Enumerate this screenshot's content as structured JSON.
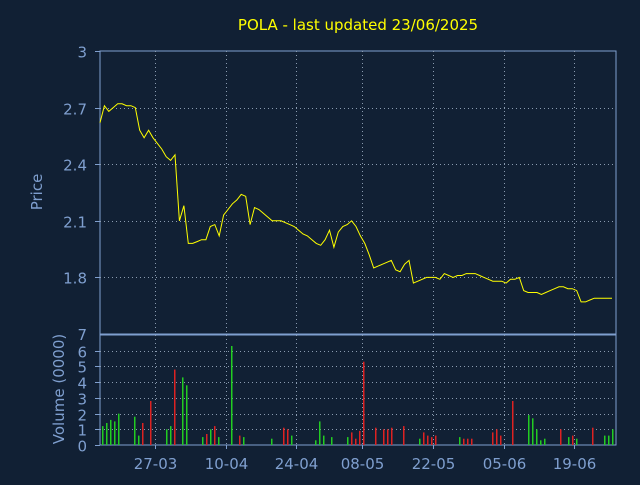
{
  "chart_data": [
    {
      "type": "line",
      "title": "POLA - last updated 23/06/2025",
      "ylabel": "Price",
      "ylim": [
        1.5,
        3.0
      ],
      "yticks": [
        "1.8",
        "2.1",
        "2.4",
        "2.7",
        "3"
      ],
      "ytick_values": [
        1.8,
        2.1,
        2.4,
        2.7,
        3.0
      ],
      "bottom_tick_label": "7",
      "grid": true,
      "line_color": "#ffff00",
      "series": [
        {
          "values": [
            2.62,
            2.71,
            2.68,
            2.7,
            2.72,
            2.72,
            2.71,
            2.71,
            2.7,
            2.58,
            2.54,
            2.58,
            2.54,
            2.51,
            2.48,
            2.44,
            2.42,
            2.45,
            2.1,
            2.18,
            1.98,
            1.98,
            1.99,
            2.0,
            2.0,
            2.07,
            2.08,
            2.02,
            2.13,
            2.16,
            2.19,
            2.21,
            2.24,
            2.23,
            2.08,
            2.17,
            2.16,
            2.14,
            2.12,
            2.1,
            2.1,
            2.1,
            2.09,
            2.08,
            2.07,
            2.05,
            2.03,
            2.02,
            2.0,
            1.98,
            1.97,
            2.0,
            2.05,
            1.96,
            2.04,
            2.07,
            2.08,
            2.1,
            2.07,
            2.02,
            1.98,
            1.92,
            1.85,
            1.86,
            1.87,
            1.88,
            1.89,
            1.84,
            1.83,
            1.87,
            1.89,
            1.77,
            1.78,
            1.79,
            1.8,
            1.8,
            1.8,
            1.79,
            1.82,
            1.81,
            1.8,
            1.81,
            1.81,
            1.82,
            1.82,
            1.82,
            1.81,
            1.8,
            1.79,
            1.78,
            1.78,
            1.78,
            1.77,
            1.79,
            1.79,
            1.8,
            1.73,
            1.72,
            1.72,
            1.72,
            1.71,
            1.72,
            1.73,
            1.74,
            1.75,
            1.75,
            1.74,
            1.74,
            1.73,
            1.67,
            1.67,
            1.68,
            1.69,
            1.69,
            1.69,
            1.69,
            1.69
          ]
        }
      ]
    },
    {
      "type": "bar",
      "ylabel": "Volume (0000)",
      "ylim": [
        0,
        7
      ],
      "yticks": [
        "0",
        "1",
        "2",
        "3",
        "4",
        "5",
        "6"
      ],
      "ytick_values": [
        0,
        1,
        2,
        3,
        4,
        5,
        6
      ],
      "xtick_labels": [
        "27-03",
        "10-04",
        "24-04",
        "08-05",
        "22-05",
        "05-06",
        "19-06"
      ],
      "xtick_index": [
        12,
        28,
        44,
        59,
        75,
        91,
        107
      ],
      "grid": true,
      "up_color": "#22cc22",
      "down_color": "#dd2222",
      "series": [
        {
          "values": [
            1.2,
            1.4,
            1.6,
            1.5,
            2.0,
            0,
            0,
            0,
            1.8,
            0.6,
            1.4,
            0,
            2.8,
            0,
            0,
            0,
            1.0,
            1.2,
            4.8,
            0,
            4.3,
            3.8,
            0,
            0,
            0,
            0.5,
            0.7,
            1.0,
            1.2,
            0.5,
            0,
            0,
            6.3,
            0,
            0.6,
            0.5,
            0,
            0,
            0,
            0,
            0,
            0,
            0.4,
            0,
            0,
            1.1,
            1.0,
            0.6,
            0,
            0,
            0,
            0,
            0,
            0.3,
            1.5,
            0.6,
            0,
            0.5,
            0,
            0,
            0,
            0.5,
            0.8,
            0.4,
            0.9,
            5.3,
            0,
            0,
            1.1,
            0,
            1.0,
            1.0,
            1.1,
            0,
            0,
            1.2,
            0,
            0,
            0,
            0.4,
            0.8,
            0.6,
            0.5,
            0.6,
            0,
            0,
            0,
            0,
            0,
            0.5,
            0.4,
            0.4,
            0.4,
            0,
            0,
            0,
            0,
            0.8,
            1.0,
            0.6,
            0,
            0,
            2.8,
            0,
            0,
            0,
            1.9,
            1.7,
            1.0,
            0.3,
            0.4,
            0,
            0,
            0,
            1.0,
            0,
            0.5,
            0.6,
            0.4,
            0,
            0,
            0,
            1.1,
            0,
            0,
            0.6,
            0.6,
            1.0
          ],
          "up": [
            1,
            1,
            1,
            1,
            1,
            0,
            0,
            0,
            1,
            1,
            0,
            0,
            0,
            0,
            0,
            0,
            1,
            1,
            0,
            0,
            1,
            1,
            0,
            0,
            0,
            1,
            0,
            1,
            0,
            1,
            0,
            0,
            1,
            0,
            0,
            1,
            0,
            0,
            0,
            0,
            0,
            0,
            1,
            0,
            0,
            0,
            0,
            1,
            0,
            0,
            0,
            0,
            0,
            1,
            1,
            1,
            0,
            1,
            0,
            0,
            0,
            1,
            0,
            0,
            0,
            0,
            0,
            0,
            0,
            0,
            0,
            0,
            0,
            0,
            0,
            0,
            0,
            0,
            0,
            1,
            0,
            0,
            0,
            0,
            0,
            0,
            0,
            0,
            0,
            1,
            0,
            0,
            0,
            0,
            0,
            0,
            0,
            0,
            0,
            0,
            0,
            0,
            0,
            0,
            0,
            0,
            1,
            1,
            1,
            1,
            1,
            0,
            0,
            0,
            0,
            0,
            1,
            0,
            1,
            0,
            0,
            0,
            0,
            0,
            0,
            1,
            1,
            1
          ]
        }
      ]
    }
  ]
}
